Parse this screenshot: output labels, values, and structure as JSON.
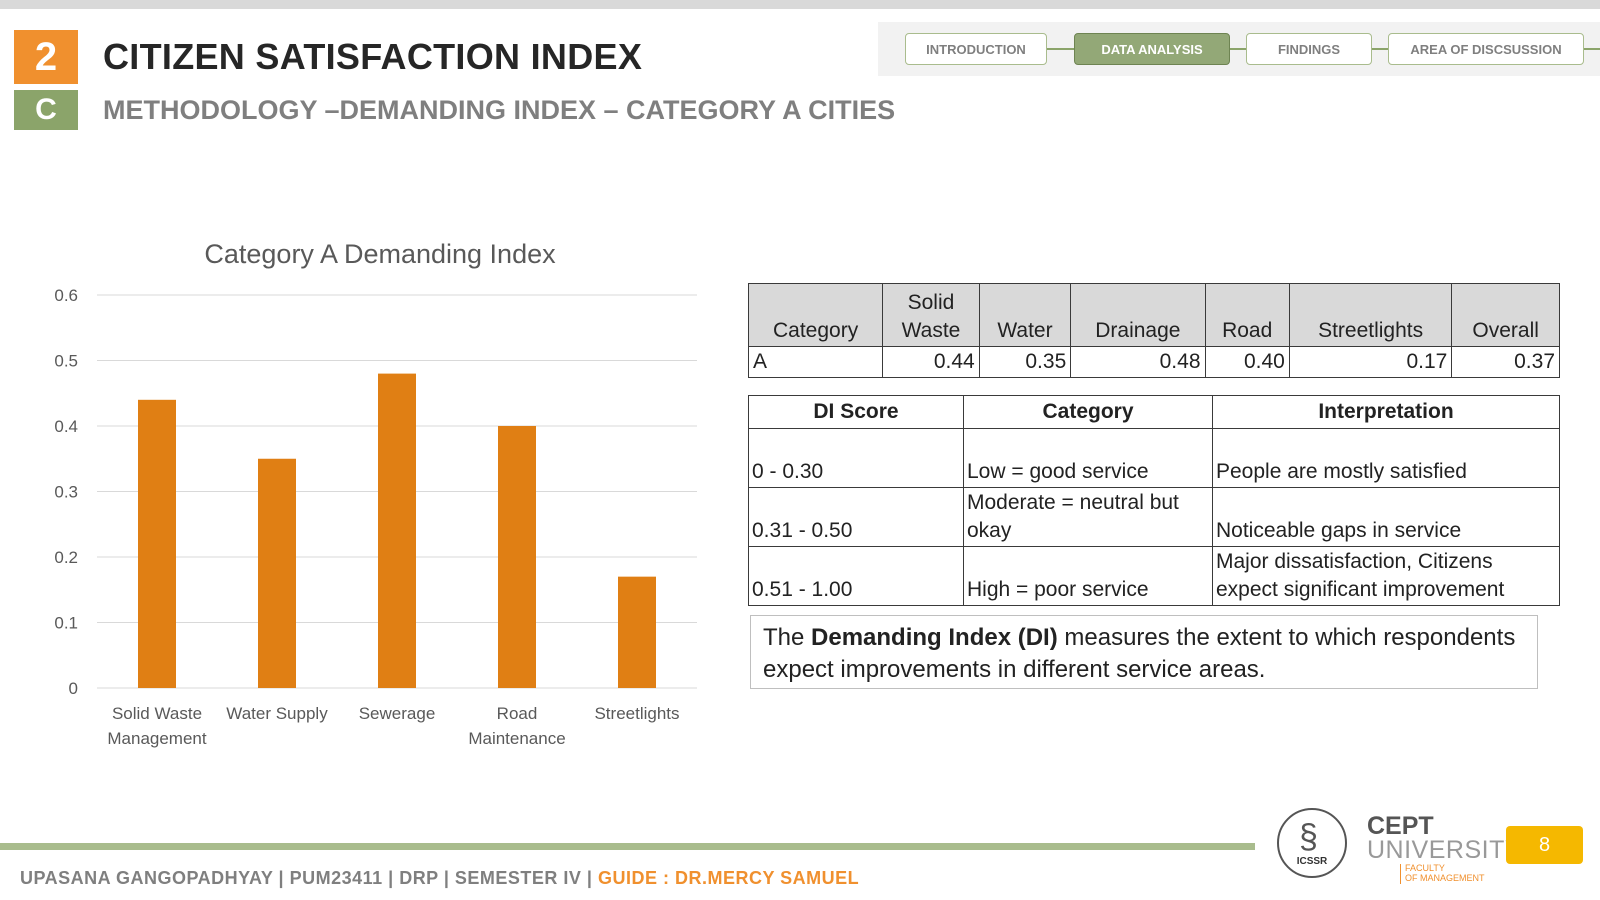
{
  "header": {
    "section_number": "2",
    "section_letter": "C",
    "title": "CITIZEN SATISFACTION INDEX",
    "subtitle": "METHODOLOGY –DEMANDING INDEX – CATEGORY A CITIES"
  },
  "nav": {
    "tabs": [
      {
        "label": "INTRODUCTION",
        "active": false
      },
      {
        "label": "DATA ANALYSIS",
        "active": true
      },
      {
        "label": "FINDINGS",
        "active": false
      },
      {
        "label": "AREA OF DISCSUSSION",
        "active": false
      }
    ]
  },
  "chart_data": {
    "type": "bar",
    "title": "Category A Demanding Index",
    "categories": [
      "Solid Waste Management",
      "Water Supply",
      "Sewerage",
      "Road Maintenance",
      "Streetlights"
    ],
    "category_lines": [
      [
        "Solid Waste",
        "Management"
      ],
      [
        "Water Supply"
      ],
      [
        "Sewerage"
      ],
      [
        "Road",
        "Maintenance"
      ],
      [
        "Streetlights"
      ]
    ],
    "values": [
      0.44,
      0.35,
      0.48,
      0.4,
      0.17
    ],
    "ylim": [
      0,
      0.6
    ],
    "yticks": [
      0,
      0.1,
      0.2,
      0.3,
      0.4,
      0.5,
      0.6
    ],
    "ytick_labels": [
      "0",
      "0.1",
      "0.2",
      "0.3",
      "0.4",
      "0.5",
      "0.6"
    ],
    "bar_color": "#e07f14",
    "grid": true,
    "legend": "none"
  },
  "score_table": {
    "headers": [
      [
        "Category"
      ],
      [
        "Solid",
        "Waste"
      ],
      [
        "Water"
      ],
      [
        "Drainage"
      ],
      [
        "Road"
      ],
      [
        "Streetlights"
      ],
      [
        "Overall"
      ]
    ],
    "row": [
      "A",
      "0.44",
      "0.35",
      "0.48",
      "0.40",
      "0.17",
      "0.37"
    ]
  },
  "di_table": {
    "headers": [
      "DI Score",
      "Category",
      "Interpretation"
    ],
    "rows": [
      [
        "0 - 0.30",
        "Low = good service",
        "People are mostly satisfied"
      ],
      [
        "0.31 - 0.50",
        "Moderate = neutral but okay",
        "Noticeable gaps in service"
      ],
      [
        "0.51 - 1.00",
        "High =  poor service",
        "Major dissatisfaction, Citizens expect significant improvement"
      ]
    ]
  },
  "note": {
    "before": "The ",
    "bold": "Demanding Index (DI)",
    "after": " measures the extent to which respondents expect improvements in different service areas."
  },
  "footer": {
    "author": "UPASANA GANGOPADHYAY | PUM23411 | DRP | SEMESTER IV | ",
    "guide": "GUIDE : DR.MERCY SAMUEL",
    "page_number": "8",
    "logo_icssr": "ICSSR",
    "logo_cept": "CEPT",
    "logo_university": "UNIVERSITY",
    "logo_faculty_1": "FACULTY",
    "logo_faculty_2": "OF MANAGEMENT"
  },
  "colors": {
    "accent_orange": "#f0902e",
    "accent_green": "#8ba46a",
    "bar": "#e07f14",
    "page_badge": "#f5b800"
  }
}
